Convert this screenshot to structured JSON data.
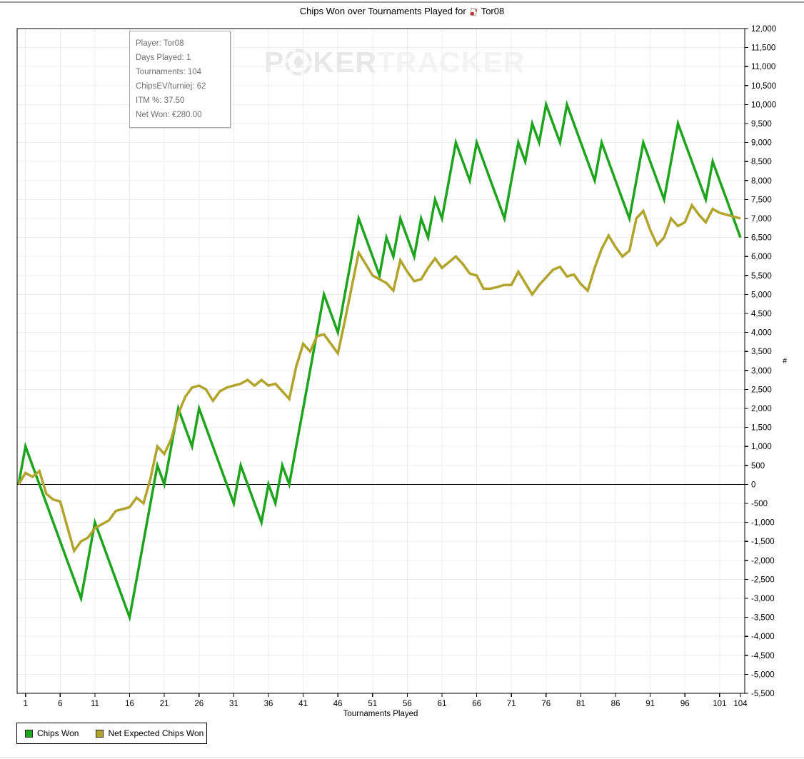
{
  "header": {
    "title_prefix": "Chips Won over Tournaments Played for",
    "player": "Tor08"
  },
  "tooltip": {
    "player": "Player: Tor08",
    "days_played": "Days Played: 1",
    "tournaments": "Tournaments: 104",
    "chips_ev": "ChipsEV/turniej: 62",
    "itm": "ITM %: 37.50",
    "net_won": "Net Won: €280.00"
  },
  "watermark": {
    "p": "P",
    "ker": "KER",
    "tracker": "TRACKER"
  },
  "legend": {
    "items": [
      {
        "label": "Chips Won",
        "color": "#1ca51c"
      },
      {
        "label": "Net Expected Chips Won",
        "color": "#b2a32b"
      }
    ]
  },
  "colors": {
    "chips_won": "#1ca51c",
    "net_expected": "#b2a32b",
    "grid": "#ececec",
    "axis": "#000000",
    "zero_line": "#000000",
    "watermark_dark": "#e7e7e7",
    "watermark_light": "#f3f3f3"
  },
  "chart_data": {
    "type": "line",
    "title": "Chips Won over Tournaments Played for Tor08",
    "xlabel": "Tournaments Played",
    "ylabel": "#",
    "x_range": [
      0,
      104
    ],
    "x_note": "points at consecutive tournaments 0..104 (0 = starting bankroll)",
    "x_ticks": [
      1,
      6,
      11,
      16,
      21,
      26,
      31,
      36,
      41,
      46,
      51,
      56,
      61,
      66,
      71,
      76,
      81,
      86,
      91,
      96,
      101,
      104
    ],
    "ylim": [
      -5500,
      12000
    ],
    "y_tick_step": 500,
    "grid": true,
    "zero_line": true,
    "legend_position": "bottom-left",
    "series": [
      {
        "name": "Chips Won",
        "color": "#1ca51c",
        "values": [
          0,
          1000,
          500,
          0,
          -500,
          -1000,
          -1500,
          -2000,
          -2500,
          -3000,
          -2000,
          -1000,
          -1500,
          -2000,
          -2500,
          -3000,
          -3500,
          -2500,
          -1500,
          -500,
          500,
          0,
          1000,
          2000,
          1500,
          1000,
          2000,
          1500,
          1000,
          500,
          0,
          -500,
          500,
          0,
          -500,
          -1000,
          0,
          -500,
          500,
          0,
          1000,
          2000,
          3000,
          4000,
          5000,
          4500,
          4000,
          5000,
          6000,
          7000,
          6500,
          6000,
          5500,
          6500,
          6000,
          7000,
          6500,
          6000,
          7000,
          6500,
          7500,
          7000,
          8000,
          9000,
          8500,
          8000,
          9000,
          8500,
          8000,
          7500,
          7000,
          8000,
          9000,
          8500,
          9500,
          9000,
          10000,
          9500,
          9000,
          10000,
          9500,
          9000,
          8500,
          8000,
          9000,
          8500,
          8000,
          7500,
          7000,
          8000,
          9000,
          8500,
          8000,
          7500,
          8500,
          9500,
          9000,
          8500,
          8000,
          7500,
          8500,
          8000,
          7500,
          7000,
          6500
        ]
      },
      {
        "name": "Net Expected Chips Won",
        "color": "#b2a32b",
        "values": [
          0,
          300,
          200,
          350,
          -250,
          -400,
          -450,
          -1100,
          -1750,
          -1500,
          -1400,
          -1150,
          -1050,
          -950,
          -700,
          -650,
          -600,
          -350,
          -500,
          150,
          1000,
          800,
          1200,
          1850,
          2300,
          2550,
          2600,
          2500,
          2200,
          2450,
          2550,
          2600,
          2650,
          2750,
          2600,
          2750,
          2600,
          2650,
          2450,
          2250,
          3100,
          3700,
          3500,
          3900,
          3950,
          3700,
          3450,
          4300,
          5200,
          6100,
          5800,
          5500,
          5400,
          5300,
          5100,
          5900,
          5600,
          5350,
          5400,
          5700,
          5950,
          5700,
          5850,
          6000,
          5800,
          5550,
          5500,
          5150,
          5150,
          5200,
          5250,
          5250,
          5600,
          5300,
          5000,
          5250,
          5450,
          5650,
          5725,
          5475,
          5525,
          5275,
          5100,
          5700,
          6200,
          6550,
          6250,
          6000,
          6150,
          7000,
          7200,
          6700,
          6300,
          6500,
          7000,
          6800,
          6900,
          7350,
          7100,
          6900,
          7250,
          7150,
          7100,
          7050,
          7000
        ]
      }
    ]
  }
}
